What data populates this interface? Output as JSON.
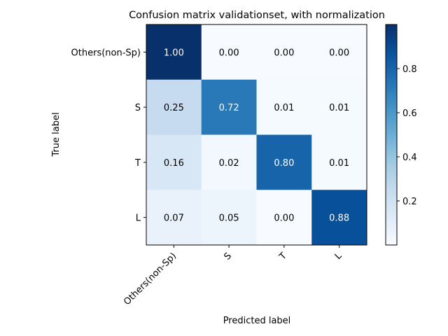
{
  "chart_data": {
    "type": "heatmap",
    "title": "Confusion matrix validationset, with normalization",
    "xlabel": "Predicted label",
    "ylabel": "True label",
    "rows": [
      "Others(non-Sp)",
      "S",
      "T",
      "L"
    ],
    "columns": [
      "Others(non-Sp)",
      "S",
      "T",
      "L"
    ],
    "values": [
      [
        1.0,
        0.0,
        0.0,
        0.0
      ],
      [
        0.25,
        0.72,
        0.01,
        0.01
      ],
      [
        0.16,
        0.02,
        0.8,
        0.01
      ],
      [
        0.07,
        0.05,
        0.0,
        0.88
      ]
    ],
    "value_labels": [
      [
        "1.00",
        "0.00",
        "0.00",
        "0.00"
      ],
      [
        "0.25",
        "0.72",
        "0.01",
        "0.01"
      ],
      [
        "0.16",
        "0.02",
        "0.80",
        "0.01"
      ],
      [
        "0.07",
        "0.05",
        "0.00",
        "0.88"
      ]
    ],
    "colormap": "Blues",
    "colorbar": {
      "range": [
        0.0,
        1.0
      ],
      "ticks": [
        0.2,
        0.4,
        0.6,
        0.8
      ],
      "tick_labels": [
        "0.2",
        "0.4",
        "0.6",
        "0.8"
      ]
    },
    "text_color_light": "#ffffff",
    "text_color_dark": "#000000"
  }
}
